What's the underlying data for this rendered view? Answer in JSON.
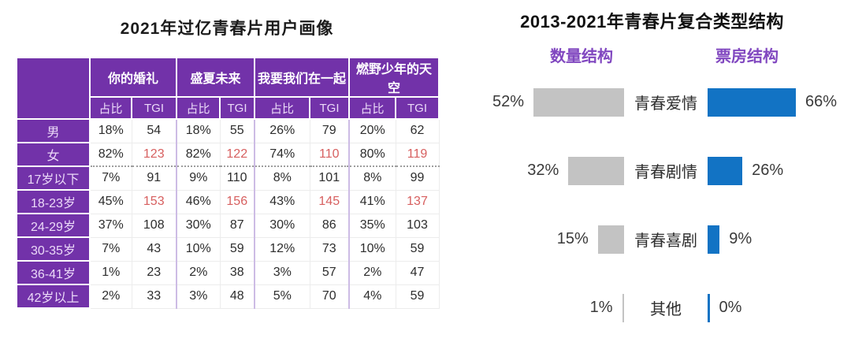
{
  "colors": {
    "table_purple": "#7232A9",
    "series_header_purple": "#8148C0",
    "quantity_bar_gray": "#C3C3C3",
    "boxoffice_bar_blue": "#1273C4",
    "tgi_highlight_red": "#D75F5F"
  },
  "left_panel": {
    "title": "2021年过亿青春片用户画像",
    "table": {
      "movie_columns": [
        "你的婚礼",
        "盛夏未来",
        "我要我们在一起",
        "燃野少年的天空"
      ],
      "sub_headers": [
        "占比",
        "TGI"
      ],
      "rows": [
        {
          "label": "男",
          "values": [
            "18%",
            "54",
            "18%",
            "55",
            "26%",
            "79",
            "20%",
            "62"
          ],
          "tgi_red": false,
          "section_end": false
        },
        {
          "label": "女",
          "values": [
            "82%",
            "123",
            "82%",
            "122",
            "74%",
            "110",
            "80%",
            "119"
          ],
          "tgi_red": true,
          "section_end": true
        },
        {
          "label": "17岁以下",
          "values": [
            "7%",
            "91",
            "9%",
            "110",
            "8%",
            "101",
            "8%",
            "99"
          ],
          "tgi_red": false,
          "section_end": false
        },
        {
          "label": "18-23岁",
          "values": [
            "45%",
            "153",
            "46%",
            "156",
            "43%",
            "145",
            "41%",
            "137"
          ],
          "tgi_red": true,
          "section_end": false
        },
        {
          "label": "24-29岁",
          "values": [
            "37%",
            "108",
            "30%",
            "87",
            "30%",
            "86",
            "35%",
            "103"
          ],
          "tgi_red": false,
          "section_end": false
        },
        {
          "label": "30-35岁",
          "values": [
            "7%",
            "43",
            "10%",
            "59",
            "12%",
            "73",
            "10%",
            "59"
          ],
          "tgi_red": false,
          "section_end": false
        },
        {
          "label": "36-41岁",
          "values": [
            "1%",
            "23",
            "2%",
            "38",
            "3%",
            "57",
            "2%",
            "47"
          ],
          "tgi_red": false,
          "section_end": false
        },
        {
          "label": "42岁以上",
          "values": [
            "2%",
            "33",
            "3%",
            "48",
            "5%",
            "70",
            "4%",
            "59"
          ],
          "tgi_red": false,
          "section_end": false
        }
      ]
    }
  },
  "right_panel": {
    "title": "2013-2021年青春片复合类型结构"
  },
  "chart_data": {
    "type": "bar",
    "title": "2013-2021年青春片复合类型结构",
    "orientation": "horizontal-mirrored-from-center-labels",
    "categories": [
      "青春爱情",
      "青春剧情",
      "青春喜剧",
      "其他"
    ],
    "series": [
      {
        "name": "数量结构",
        "values": [
          52,
          32,
          15,
          1
        ],
        "unit": "%",
        "color": "#C3C3C3",
        "side": "left"
      },
      {
        "name": "票房结构",
        "values": [
          66,
          26,
          9,
          0
        ],
        "unit": "%",
        "color": "#1273C4",
        "side": "right"
      }
    ],
    "value_suffix": "%",
    "grid": false,
    "legend_position": "column-headers-top"
  }
}
